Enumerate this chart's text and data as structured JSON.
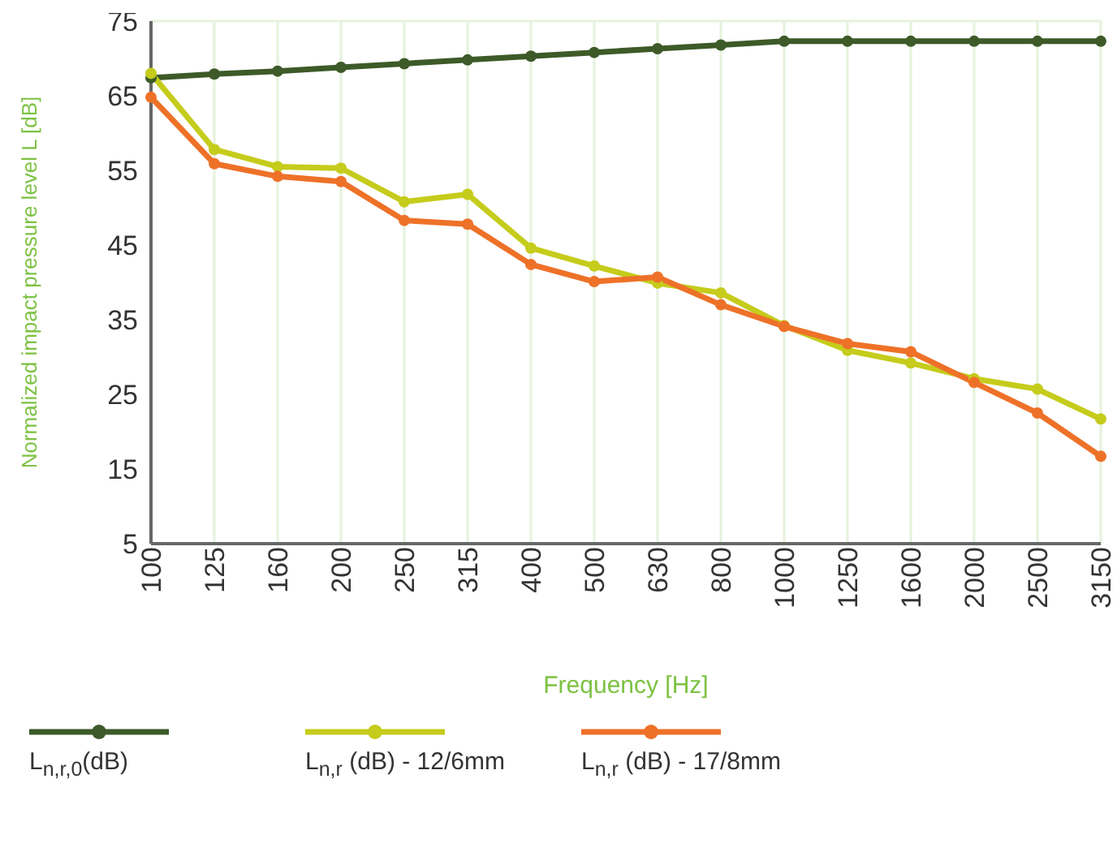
{
  "chart_data": {
    "type": "line",
    "xlabel": "Frequency [Hz]",
    "ylabel": "Normalized impact pressure level L [dB]",
    "categories": [
      "100",
      "125",
      "160",
      "200",
      "250",
      "315",
      "400",
      "500",
      "630",
      "800",
      "1000",
      "1250",
      "1600",
      "2000",
      "2500",
      "3150"
    ],
    "series": [
      {
        "name": "L$_{n,r,0}$(dB)",
        "color": "#3d5a28",
        "values": [
          67.4,
          67.9,
          68.3,
          68.8,
          69.3,
          69.8,
          70.3,
          70.8,
          71.3,
          71.8,
          72.3,
          72.3,
          72.3,
          72.3,
          72.3,
          72.3
        ]
      },
      {
        "name": "L$_{n,r}$ (dB) - 12/6mm",
        "color": "#c5cc1b",
        "values": [
          68,
          57.8,
          55.5,
          55.3,
          50.8,
          51.8,
          44.6,
          42.2,
          39.9,
          38.6,
          34.2,
          30.9,
          29.2,
          27.1,
          25.7,
          21.7
        ]
      },
      {
        "name": "L$_{n,r}$ (dB) - 17/8mm",
        "color": "#ee7128",
        "values": [
          64.8,
          55.9,
          54.2,
          53.5,
          48.3,
          47.8,
          42.4,
          40.1,
          40.7,
          37,
          34.1,
          31.8,
          30.7,
          26.6,
          22.5,
          16.7
        ]
      }
    ],
    "ylim": [
      5,
      75
    ],
    "yticks": [
      5,
      15,
      25,
      35,
      45,
      55,
      65,
      75
    ],
    "grid": true,
    "legend": "bottom",
    "marker": "circle",
    "line_style": "solid"
  }
}
